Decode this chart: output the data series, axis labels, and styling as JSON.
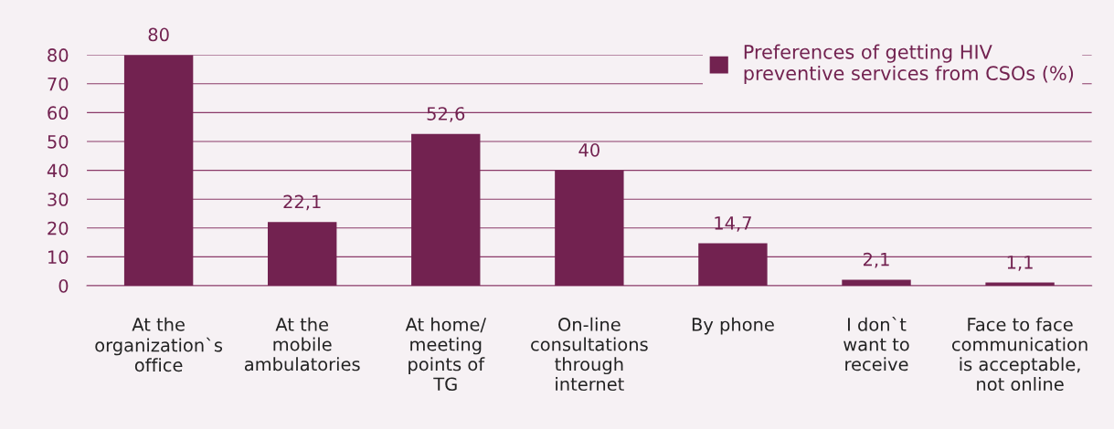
{
  "chart_data": {
    "type": "bar",
    "categories": [
      "At the\norganization`s\noffice",
      "At the\nmobile\nambulatories",
      "At home/\nmeeting\npoints of\nTG",
      "On-line\nconsultations\nthrough\ninternet",
      "By phone",
      "I don`t\nwant to\nreceive",
      "Face to face\ncommunication\nis acceptable,\nnot online"
    ],
    "series": [
      {
        "name": "Preferences of getting HIV\npreventive services from CSOs (%)",
        "color": "#722250",
        "values": [
          80,
          22.1,
          52.6,
          40,
          14.7,
          2.1,
          1.1
        ],
        "value_labels": [
          "80",
          "22,1",
          "52,6",
          "40",
          "14,7",
          "2,1",
          "1,1"
        ]
      }
    ],
    "ylim": [
      0,
      80
    ],
    "yticks": [
      0,
      10,
      20,
      30,
      40,
      50,
      60,
      70,
      80
    ],
    "grid": "y",
    "legend": "top right"
  }
}
